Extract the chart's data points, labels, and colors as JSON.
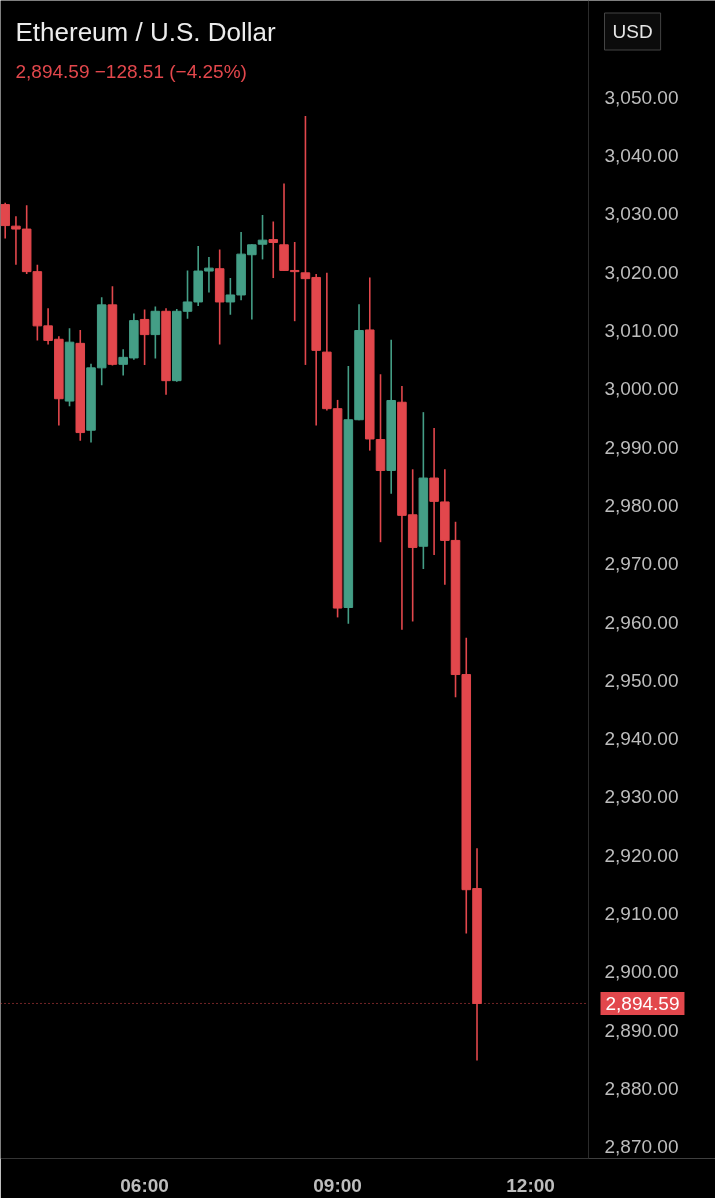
{
  "chart_data": {
    "type": "candlestick",
    "title": "Ethereum / U.S. Dollar",
    "subtitle": "2,894.59 −128.51 (−4.25%)",
    "annotations": [
      "USD"
    ],
    "x": [
      3.833,
      4.0,
      4.167,
      4.333,
      4.5,
      4.667,
      4.833,
      5.0,
      5.167,
      5.333,
      5.5,
      5.667,
      5.833,
      6.0,
      6.167,
      6.333,
      6.5,
      6.667,
      6.833,
      7.0,
      7.167,
      7.333,
      7.5,
      7.667,
      7.833,
      8.0,
      8.167,
      8.333,
      8.5,
      8.667,
      8.833,
      9.0,
      9.167,
      9.333,
      9.5,
      9.667,
      9.833,
      10.0,
      10.167,
      10.333,
      10.5,
      10.667,
      10.833,
      11.0,
      11.167
    ],
    "ohlc": [
      [
        3031.6,
        3031.9,
        3025.8,
        3028.0
      ],
      [
        3027.9,
        3029.6,
        3021.3,
        3027.4
      ],
      [
        3027.4,
        3031.5,
        3019.7,
        3020.1
      ],
      [
        3020.1,
        3021.3,
        3008.3,
        3010.8
      ],
      [
        3010.8,
        3013.8,
        3007.6,
        3008.3
      ],
      [
        3008.5,
        3009.0,
        2993.7,
        2998.3
      ],
      [
        2997.9,
        3010.4,
        2997.0,
        3008.0
      ],
      [
        3007.8,
        3010.1,
        2991.1,
        2992.5
      ],
      [
        2992.9,
        3004.3,
        2990.8,
        3003.6
      ],
      [
        3003.6,
        3015.7,
        3000.6,
        3014.4
      ],
      [
        3014.4,
        3017.6,
        3004.0,
        3004.2
      ],
      [
        3004.2,
        3006.8,
        3002.3,
        3005.4
      ],
      [
        3005.3,
        3012.9,
        3005.0,
        3011.7
      ],
      [
        3011.9,
        3013.6,
        3004.1,
        3009.3
      ],
      [
        3009.3,
        3014.1,
        3005.2,
        3013.3
      ],
      [
        3013.3,
        3013.8,
        2999.0,
        3001.4
      ],
      [
        3001.4,
        3013.7,
        3001.2,
        3013.3
      ],
      [
        3013.3,
        3020.3,
        3012.0,
        3014.9
      ],
      [
        3014.9,
        3024.5,
        3014.2,
        3020.2
      ],
      [
        3020.2,
        3022.6,
        3016.5,
        3020.7
      ],
      [
        3020.6,
        3023.9,
        3007.6,
        3014.9
      ],
      [
        3014.9,
        3019.0,
        3012.7,
        3016.1
      ],
      [
        3016.1,
        3026.9,
        3015.2,
        3023.1
      ],
      [
        3023.0,
        3024.8,
        3011.9,
        3024.7
      ],
      [
        3024.8,
        3029.8,
        3022.2,
        3025.5
      ],
      [
        3025.6,
        3028.7,
        3019.0,
        3025.1
      ],
      [
        3024.7,
        3035.2,
        3020.2,
        3020.3
      ],
      [
        3020.3,
        3025.2,
        3011.6,
        3020.1
      ],
      [
        3019.9,
        3046.8,
        3004.1,
        3018.9
      ],
      [
        3019.1,
        3019.7,
        2993.7,
        3006.6
      ],
      [
        3006.3,
        3019.9,
        2996.3,
        2996.6
      ],
      [
        2996.6,
        2998.1,
        2960.8,
        2962.4
      ],
      [
        2962.5,
        3003.9,
        2959.7,
        2994.7
      ],
      [
        2994.7,
        3014.5,
        2994.6,
        3010.0
      ],
      [
        3010.1,
        3019.1,
        2989.4,
        2991.4
      ],
      [
        2991.3,
        3002.5,
        2973.7,
        2986.0
      ],
      [
        2986.0,
        3008.4,
        2982.0,
        2998.0
      ],
      [
        2997.7,
        3000.5,
        2958.7,
        2978.3
      ],
      [
        2978.4,
        2986.2,
        2960.1,
        2972.8
      ],
      [
        2973.0,
        2996.0,
        2969.1,
        2984.7
      ],
      [
        2984.7,
        2993.3,
        2971.5,
        2980.7
      ],
      [
        2980.6,
        2986.2,
        2966.4,
        2974.0
      ],
      [
        2974.0,
        2977.2,
        2947.1,
        2951.0
      ],
      [
        2951.0,
        2957.3,
        2906.6,
        2914.1
      ],
      [
        2914.3,
        2921.2,
        2884.8,
        2894.59
      ]
    ],
    "colors": [
      "#e2474c",
      "#e2474c",
      "#e2474c",
      "#e2474c",
      "#e2474c",
      "#e2474c",
      "#449e86",
      "#e2474c",
      "#449e86",
      "#449e86",
      "#e2474c",
      "#449e86",
      "#449e86",
      "#e2474c",
      "#449e86",
      "#e2474c",
      "#449e86",
      "#449e86",
      "#449e86",
      "#449e86",
      "#e2474c",
      "#449e86",
      "#449e86",
      "#449e86",
      "#449e86",
      "#e2474c",
      "#e2474c",
      "#e2474c",
      "#e2474c",
      "#e2474c",
      "#e2474c",
      "#e2474c",
      "#449e86",
      "#449e86",
      "#e2474c",
      "#e2474c",
      "#449e86",
      "#e2474c",
      "#e2474c",
      "#449e86",
      "#e2474c",
      "#e2474c",
      "#e2474c",
      "#e2474c",
      "#e2474c"
    ],
    "xlim": [
      3.76,
      12.9
    ],
    "xticks": [
      {
        "value": 6,
        "label": "06:00"
      },
      {
        "value": 9,
        "label": "09:00"
      },
      {
        "value": 12,
        "label": "12:00"
      }
    ],
    "ylim": [
      2868,
      3066.6
    ],
    "yticks": [
      {
        "value": 2870,
        "label": "2,870.00"
      },
      {
        "value": 2880,
        "label": "2,880.00"
      },
      {
        "value": 2890,
        "label": "2,890.00"
      },
      {
        "value": 2900,
        "label": "2,900.00"
      },
      {
        "value": 2910,
        "label": "2,910.00"
      },
      {
        "value": 2920,
        "label": "2,920.00"
      },
      {
        "value": 2930,
        "label": "2,930.00"
      },
      {
        "value": 2940,
        "label": "2,940.00"
      },
      {
        "value": 2950,
        "label": "2,950.00"
      },
      {
        "value": 2960,
        "label": "2,960.00"
      },
      {
        "value": 2970,
        "label": "2,970.00"
      },
      {
        "value": 2980,
        "label": "2,980.00"
      },
      {
        "value": 2990,
        "label": "2,990.00"
      },
      {
        "value": 3000,
        "label": "3,000.00"
      },
      {
        "value": 3010,
        "label": "3,010.00"
      },
      {
        "value": 3020,
        "label": "3,020.00"
      },
      {
        "value": 3030,
        "label": "3,030.00"
      },
      {
        "value": 3040,
        "label": "3,040.00"
      },
      {
        "value": 3050,
        "label": "3,050.00"
      }
    ],
    "ref_lines": [
      {
        "axis": "y",
        "value": 2894.59,
        "label": "2,894.59",
        "color": "#e2474c",
        "line_style": "dotted"
      }
    ]
  }
}
